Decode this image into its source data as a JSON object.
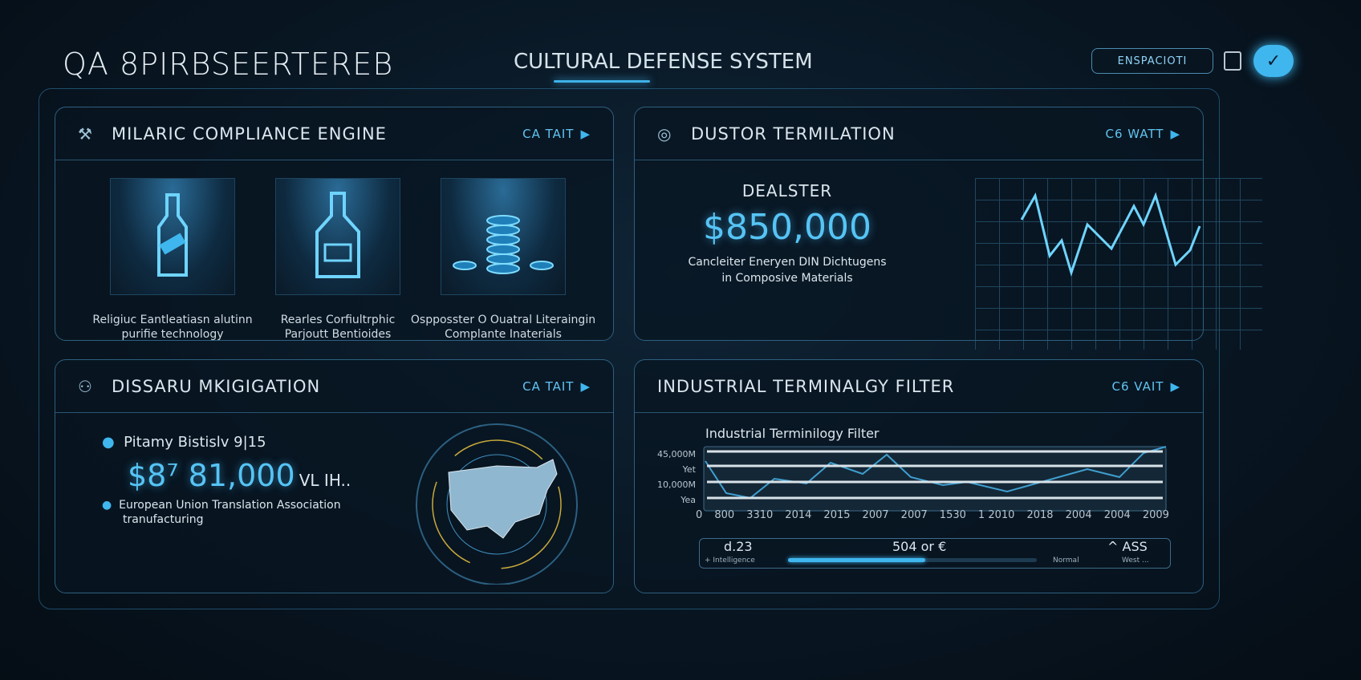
{
  "header": {
    "brand": "QA 8PIRBSEERTEREB",
    "title": "CULTURAL DEFENSE SYSTEM",
    "button": "ENSPACIOTI",
    "icons": [
      "document-icon",
      "check-icon"
    ]
  },
  "accent": "#3fb6ee",
  "panels": {
    "compliance": {
      "title": "MILARIC COMPLIANCE ENGINE",
      "action": "CA TAIT",
      "items": [
        {
          "icon": "bottle-icon",
          "caption1": "Religiuc Eantleatiasn alutinn",
          "caption2": "purifie technology"
        },
        {
          "icon": "flask-icon",
          "caption1": "Rearles Corfiultrphic",
          "caption2": "Parjoutt Bentioides"
        },
        {
          "icon": "coin-stack-icon",
          "caption1": "Ospposster O Ouatral Literaingin",
          "caption2": "Complante Inaterials"
        }
      ]
    },
    "termination": {
      "title": "DUSTOR TERMILATION",
      "action": "C6 WATT",
      "label": "DEALSTER",
      "value": "$850,000",
      "desc1": "Cancleiter Eneryen DIN Dichtugens",
      "desc2": "in Composive Materials"
    },
    "migration": {
      "title": "DISSARU MKIGIGATION",
      "action": "CA TAIT",
      "bullet1": "Pitamy Bistislv 9|15",
      "value": "$8⁷ 81,000",
      "value_suffix": "VL IH..",
      "bullet2a": "European Union Translation Association",
      "bullet2b": "tranufacturing"
    },
    "filter": {
      "title": "INDUSTRIAL TERMINALGY FILTER",
      "action": "C6 VAIT",
      "chart_title": "Industrial Terminilogy Filter",
      "y_labels": [
        "45,000M",
        "Yet",
        "10,000M",
        "Yea"
      ],
      "x_labels": [
        "0",
        "800",
        "3310",
        "2014",
        "2015",
        "2007",
        "2007",
        "1530",
        "1 2010",
        "2018",
        "2004",
        "2004",
        "2009"
      ],
      "controls": {
        "left_value": "d.23",
        "left_label": "+ Intelligence",
        "center": "504 or €",
        "right_label": "Normal",
        "right_value": "^ ASS",
        "right_sub": "West ...",
        "slider_percent": 55
      }
    }
  }
}
